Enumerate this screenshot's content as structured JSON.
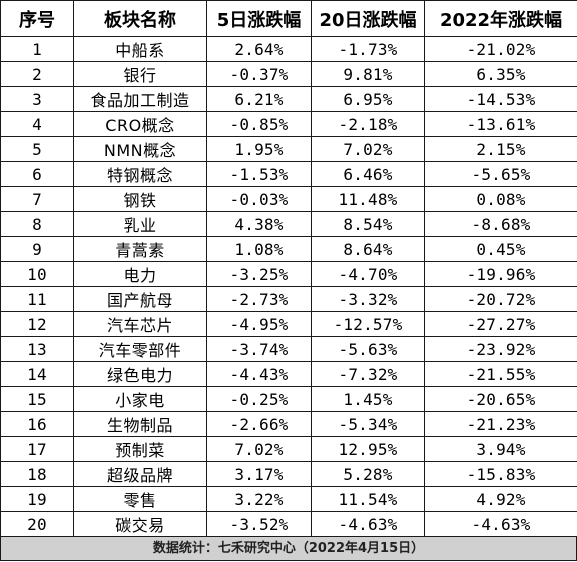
{
  "table": {
    "headers": [
      "序号",
      "板块名称",
      "5日涨跌幅",
      "20日涨跌幅",
      "2022年涨跌幅"
    ],
    "rows": [
      [
        "1",
        "中船系",
        "2.64%",
        "-1.73%",
        "-21.02%"
      ],
      [
        "2",
        "银行",
        "-0.37%",
        "9.81%",
        "6.35%"
      ],
      [
        "3",
        "食品加工制造",
        "6.21%",
        "6.95%",
        "-14.53%"
      ],
      [
        "4",
        "CRO概念",
        "-0.85%",
        "-2.18%",
        "-13.61%"
      ],
      [
        "5",
        "NMN概念",
        "1.95%",
        "7.02%",
        "2.15%"
      ],
      [
        "6",
        "特钢概念",
        "-1.53%",
        "6.46%",
        "-5.65%"
      ],
      [
        "7",
        "钢铁",
        "-0.03%",
        "11.48%",
        "0.08%"
      ],
      [
        "8",
        "乳业",
        "4.38%",
        "8.54%",
        "-8.68%"
      ],
      [
        "9",
        "青蒿素",
        "1.08%",
        "8.64%",
        "0.45%"
      ],
      [
        "10",
        "电力",
        "-3.25%",
        "-4.70%",
        "-19.96%"
      ],
      [
        "11",
        "国产航母",
        "-2.73%",
        "-3.32%",
        "-20.72%"
      ],
      [
        "12",
        "汽车芯片",
        "-4.95%",
        "-12.57%",
        "-27.27%"
      ],
      [
        "13",
        "汽车零部件",
        "-3.74%",
        "-5.63%",
        "-23.92%"
      ],
      [
        "14",
        "绿色电力",
        "-4.43%",
        "-7.32%",
        "-21.55%"
      ],
      [
        "15",
        "小家电",
        "-0.25%",
        "1.45%",
        "-20.65%"
      ],
      [
        "16",
        "生物制品",
        "-2.66%",
        "-5.34%",
        "-21.23%"
      ],
      [
        "17",
        "预制菜",
        "7.02%",
        "12.95%",
        "3.94%"
      ],
      [
        "18",
        "超级品牌",
        "3.17%",
        "5.28%",
        "-15.83%"
      ],
      [
        "19",
        "零售",
        "3.22%",
        "11.54%",
        "4.92%"
      ],
      [
        "20",
        "碳交易",
        "-3.52%",
        "-4.63%",
        "-4.63%"
      ]
    ]
  },
  "footer": {
    "text": "数据统计：七禾研究中心（2022年4月15日）"
  }
}
